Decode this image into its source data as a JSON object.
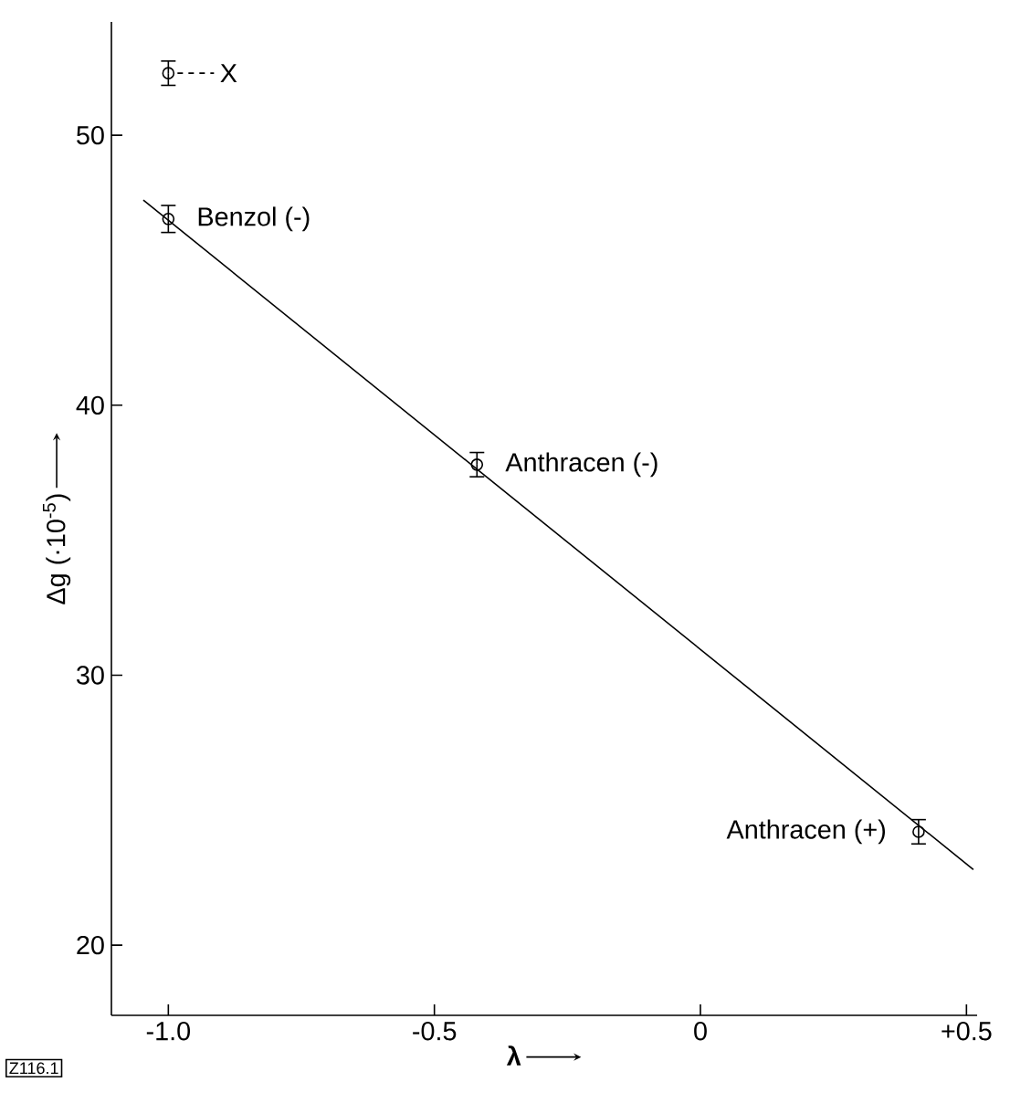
{
  "chart_data": {
    "type": "scatter",
    "xlabel": "λ",
    "ylabel": "Δg (·10$^{-5}$)",
    "xlim": [
      -1.107,
      0.52
    ],
    "ylim": [
      17.4,
      54.2
    ],
    "xticks": [
      {
        "value": -1.0,
        "label": "-1.0"
      },
      {
        "value": -0.5,
        "label": "-0.5"
      },
      0,
      {
        "value": 0.5,
        "label": "+0.5"
      }
    ],
    "yticks": [
      20,
      30,
      40,
      50
    ],
    "marker": "circle",
    "grid": false,
    "series": [
      {
        "color": "#000000",
        "x": [
          -1.0,
          -1.0,
          -0.42,
          0.41
        ],
        "values": [
          52.3,
          46.9,
          37.8,
          24.2
        ],
        "errors": [
          0.45,
          0.5,
          0.45,
          0.45
        ]
      },
      {
        "type": "line",
        "color": "#000000",
        "x": [
          -1.047,
          0.513
        ],
        "values": [
          47.6,
          22.8
        ],
        "marker": "none",
        "line_style": "solid"
      }
    ],
    "annotations": [
      {
        "text": "X",
        "x": -1.0,
        "y": 52.3
      },
      {
        "text": "Benzol (-)",
        "x": -1.0,
        "y": 46.9
      },
      {
        "text": "Anthracen (-)",
        "x": -0.42,
        "y": 37.8
      },
      {
        "text": "Anthracen (+)",
        "x": 0.41,
        "y": 24.2
      },
      "Z116.1"
    ]
  }
}
